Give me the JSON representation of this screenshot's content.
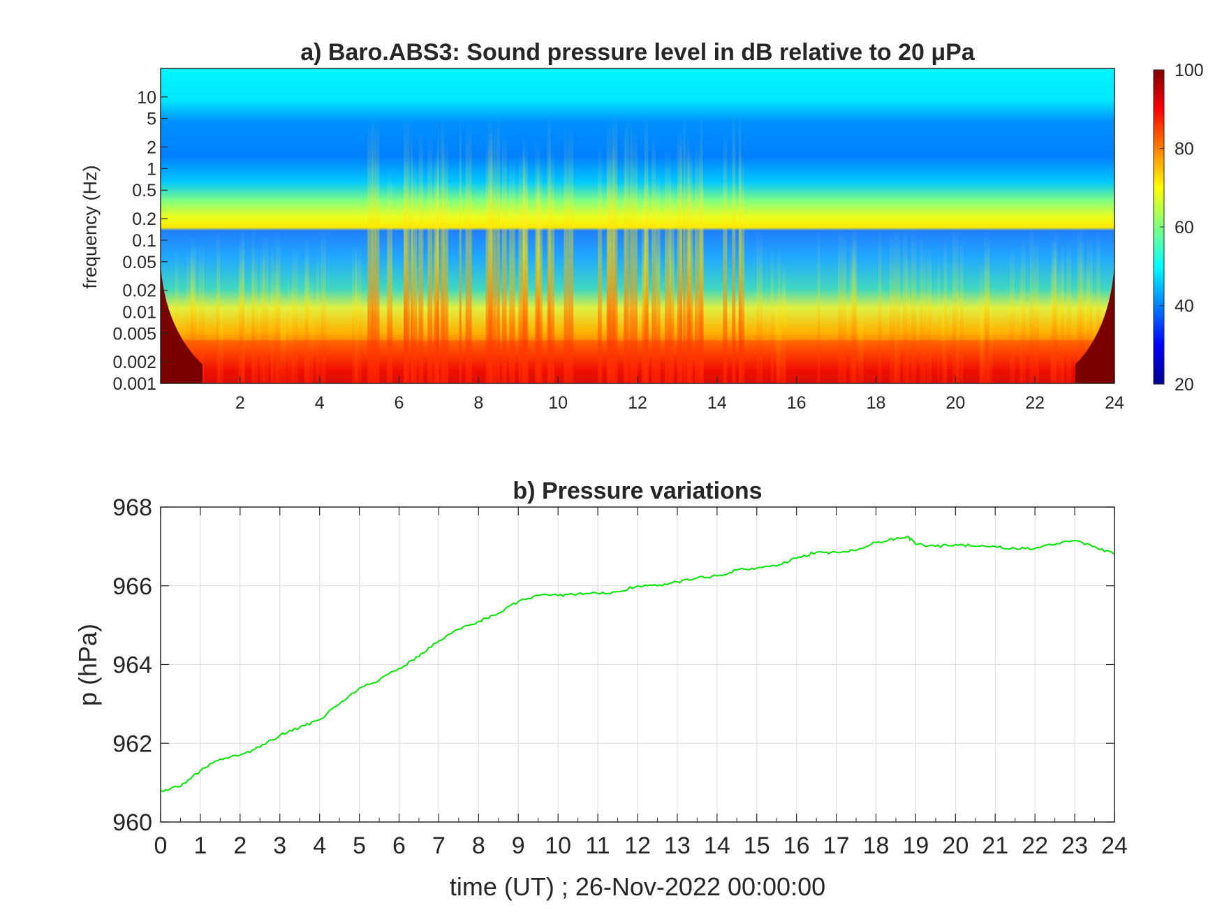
{
  "chart_data": [
    {
      "type": "heatmap",
      "title": "a) Baro.ABS3: Sound pressure level in dB relative to 20 μPa",
      "xlabel": "",
      "ylabel": "frequency (Hz)",
      "xlim": [
        0,
        24
      ],
      "ylim": [
        0.001,
        25
      ],
      "y_scale": "log",
      "x_ticks": [
        "2",
        "4",
        "6",
        "8",
        "10",
        "12",
        "14",
        "16",
        "18",
        "20",
        "22",
        "24"
      ],
      "y_ticks": [
        "10",
        "5",
        "2",
        "1",
        "0.5",
        "0.2",
        "0.1",
        "0.05",
        "0.02",
        "0.01",
        "0.005",
        "0.002",
        "0.001"
      ],
      "colorbar": {
        "min": 20,
        "max": 100,
        "ticks": [
          "100",
          "80",
          "60",
          "40",
          "20"
        ],
        "colormap": "jet"
      },
      "grid": false
    },
    {
      "type": "line",
      "title": "b) Pressure variations",
      "xlabel": "time (UT) ; 26-Nov-2022 00:00:00",
      "ylabel": "p (hPa)",
      "xlim": [
        0,
        24
      ],
      "ylim": [
        960,
        968
      ],
      "x_ticks": [
        "0",
        "1",
        "2",
        "3",
        "4",
        "5",
        "6",
        "7",
        "8",
        "9",
        "10",
        "11",
        "12",
        "13",
        "14",
        "15",
        "16",
        "17",
        "18",
        "19",
        "20",
        "21",
        "22",
        "23",
        "24"
      ],
      "y_ticks": [
        "968",
        "966",
        "964",
        "962",
        "960"
      ],
      "grid": true,
      "series": [
        {
          "color": "#00e600",
          "x": [
            0,
            0.5,
            1,
            1.5,
            2,
            2.5,
            3,
            3.5,
            4,
            4.5,
            5,
            5.5,
            6,
            6.5,
            7,
            7.5,
            8,
            8.5,
            9,
            9.5,
            10,
            10.5,
            11,
            11.5,
            12,
            12.5,
            13,
            13.5,
            14,
            14.5,
            15,
            15.5,
            16,
            16.5,
            17,
            17.5,
            18,
            18.5,
            18.8,
            19,
            19.5,
            20,
            20.5,
            21,
            21.5,
            22,
            22.5,
            23,
            23.5,
            24
          ],
          "values": [
            960.8,
            960.9,
            961.3,
            961.6,
            961.7,
            961.9,
            962.2,
            962.4,
            962.6,
            963.0,
            963.4,
            963.6,
            963.9,
            964.2,
            964.6,
            964.9,
            965.1,
            965.3,
            965.6,
            965.75,
            965.75,
            965.8,
            965.8,
            965.85,
            966.0,
            966.0,
            966.1,
            966.2,
            966.25,
            966.4,
            966.45,
            966.5,
            966.7,
            966.85,
            966.85,
            966.9,
            967.1,
            967.2,
            967.25,
            967.05,
            967.0,
            967.05,
            967.0,
            967.0,
            966.95,
            966.95,
            967.05,
            967.15,
            967.0,
            966.8
          ]
        }
      ]
    }
  ]
}
